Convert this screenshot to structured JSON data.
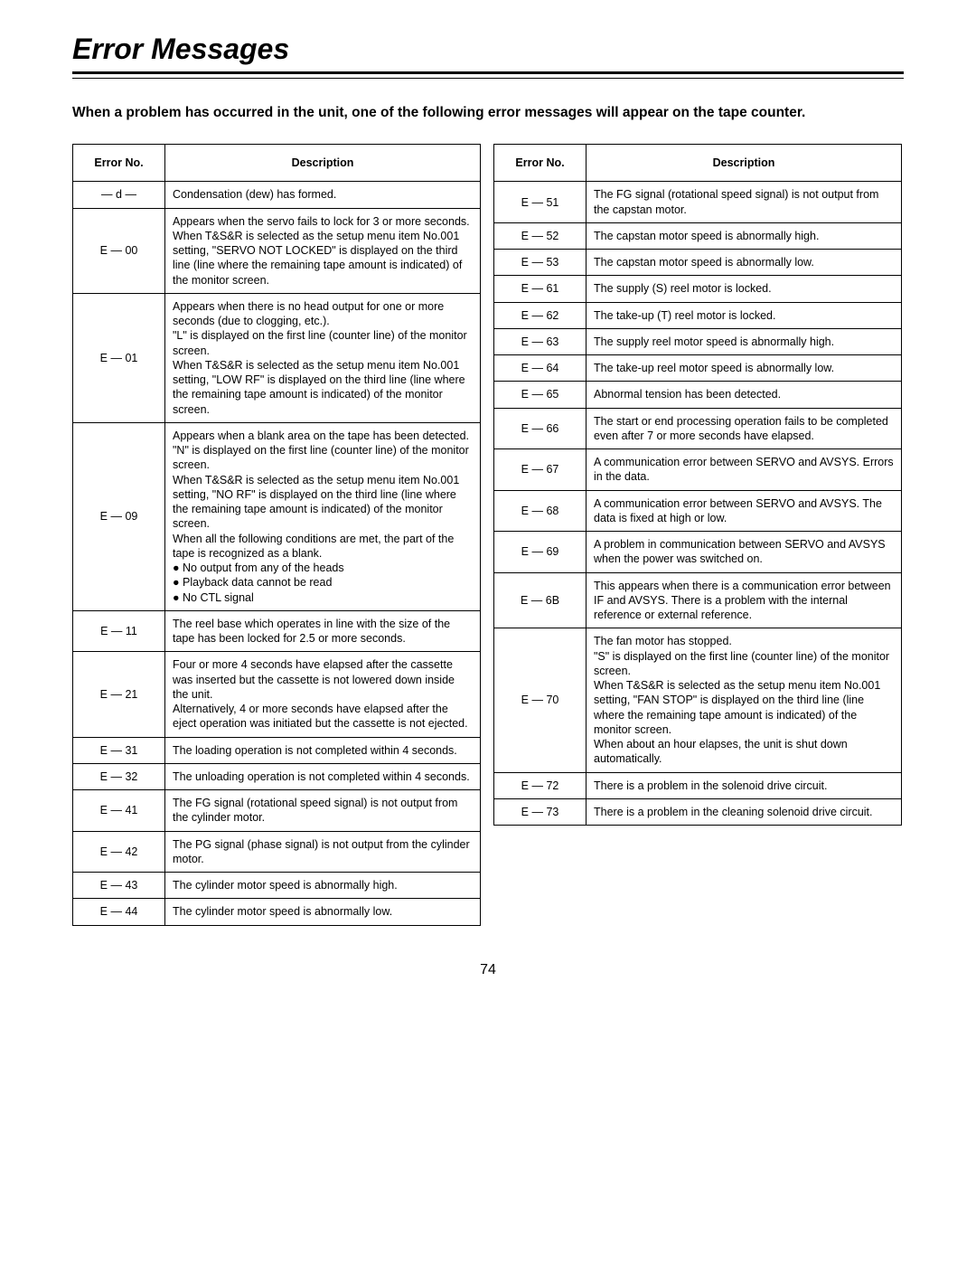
{
  "title": "Error Messages",
  "intro": "When a problem has occurred in the unit, one of the following error messages will appear on the tape counter.",
  "col_headers": {
    "code": "Error No.",
    "desc": "Description"
  },
  "page_number": "74",
  "tables": {
    "left": [
      {
        "code": "— d —",
        "desc": "Condensation (dew) has formed."
      },
      {
        "code": "E — 00",
        "desc": "Appears when the servo fails to lock for 3 or more seconds.\nWhen T&S&R is selected as the setup menu item No.001 setting, \"SERVO NOT LOCKED\" is displayed on the third line (line where the remaining tape amount is indicated) of the monitor screen."
      },
      {
        "code": "E — 01",
        "desc": "Appears when there is no head output for one or more seconds (due to clogging, etc.).\n\"L\" is displayed on the first line (counter line) of the monitor screen.\nWhen T&S&R is selected as the setup menu item No.001 setting, \"LOW RF\" is displayed on the third line (line where the remaining tape amount is indicated) of the monitor screen."
      },
      {
        "code": "E — 09",
        "desc": "Appears when a blank area on the tape has been detected.\n\"N\" is displayed on the first line (counter line) of the monitor screen.\nWhen T&S&R is selected as the setup menu item No.001 setting, \"NO RF\" is displayed on the third line (line where the remaining tape amount is indicated) of the monitor screen.\nWhen all the following conditions are met, the part of the tape is recognized as a blank.\n● No output from any of the heads\n● Playback data cannot be read\n● No CTL signal"
      },
      {
        "code": "E — 11",
        "desc": "The reel base which operates in line with the size of the tape has been locked for 2.5 or more seconds."
      },
      {
        "code": "E — 21",
        "desc": "Four or more 4 seconds have elapsed after the cassette was inserted but the cassette is not lowered down inside the unit.\nAlternatively, 4 or more seconds have elapsed after the eject operation was initiated but the cassette is not ejected."
      },
      {
        "code": "E — 31",
        "desc": "The loading operation is not completed within 4 seconds."
      },
      {
        "code": "E — 32",
        "desc": "The unloading operation is not completed within 4 seconds."
      },
      {
        "code": "E — 41",
        "desc": "The FG signal (rotational speed signal) is not output from the cylinder motor."
      },
      {
        "code": "E — 42",
        "desc": "The PG signal (phase signal) is not output from the cylinder motor."
      },
      {
        "code": "E — 43",
        "desc": "The cylinder motor speed is abnormally high."
      },
      {
        "code": "E — 44",
        "desc": "The cylinder motor speed is abnormally low."
      }
    ],
    "right": [
      {
        "code": "E — 51",
        "desc": "The FG signal (rotational speed signal) is not output from the capstan motor."
      },
      {
        "code": "E — 52",
        "desc": "The capstan motor speed is abnormally high."
      },
      {
        "code": "E — 53",
        "desc": "The capstan motor speed is abnormally low."
      },
      {
        "code": "E — 61",
        "desc": "The supply (S) reel motor is locked."
      },
      {
        "code": "E — 62",
        "desc": "The take-up (T) reel motor is locked."
      },
      {
        "code": "E — 63",
        "desc": "The supply reel motor speed is abnormally high."
      },
      {
        "code": "E — 64",
        "desc": "The take-up reel motor speed is abnormally low."
      },
      {
        "code": "E — 65",
        "desc": "Abnormal tension has been detected."
      },
      {
        "code": "E — 66",
        "desc": "The start or end processing operation fails to be completed even after 7 or more seconds have elapsed."
      },
      {
        "code": "E — 67",
        "desc": "A communication error between SERVO and AVSYS.  Errors in the data."
      },
      {
        "code": "E — 68",
        "desc": "A communication error between SERVO and AVSYS.  The data is fixed at high or low."
      },
      {
        "code": "E — 69",
        "desc": "A problem in communication between SERVO and AVSYS when the power was switched on."
      },
      {
        "code": "E — 6B",
        "desc": "This appears when there is a communication error between IF and AVSYS. There is a problem with the internal reference or external reference."
      },
      {
        "code": "E — 70",
        "desc": "The fan motor has stopped.\n\"S\" is displayed on the first line (counter line) of the monitor screen.\nWhen T&S&R is selected as the setup menu item No.001 setting, \"FAN STOP\" is displayed on the third line (line where the remaining tape amount is indicated) of the monitor screen.\nWhen about an hour elapses, the unit is shut down automatically."
      },
      {
        "code": "E — 72",
        "desc": "There is a problem in the solenoid drive circuit."
      },
      {
        "code": "E — 73",
        "desc": "There is a problem in the cleaning solenoid drive circuit."
      }
    ]
  }
}
